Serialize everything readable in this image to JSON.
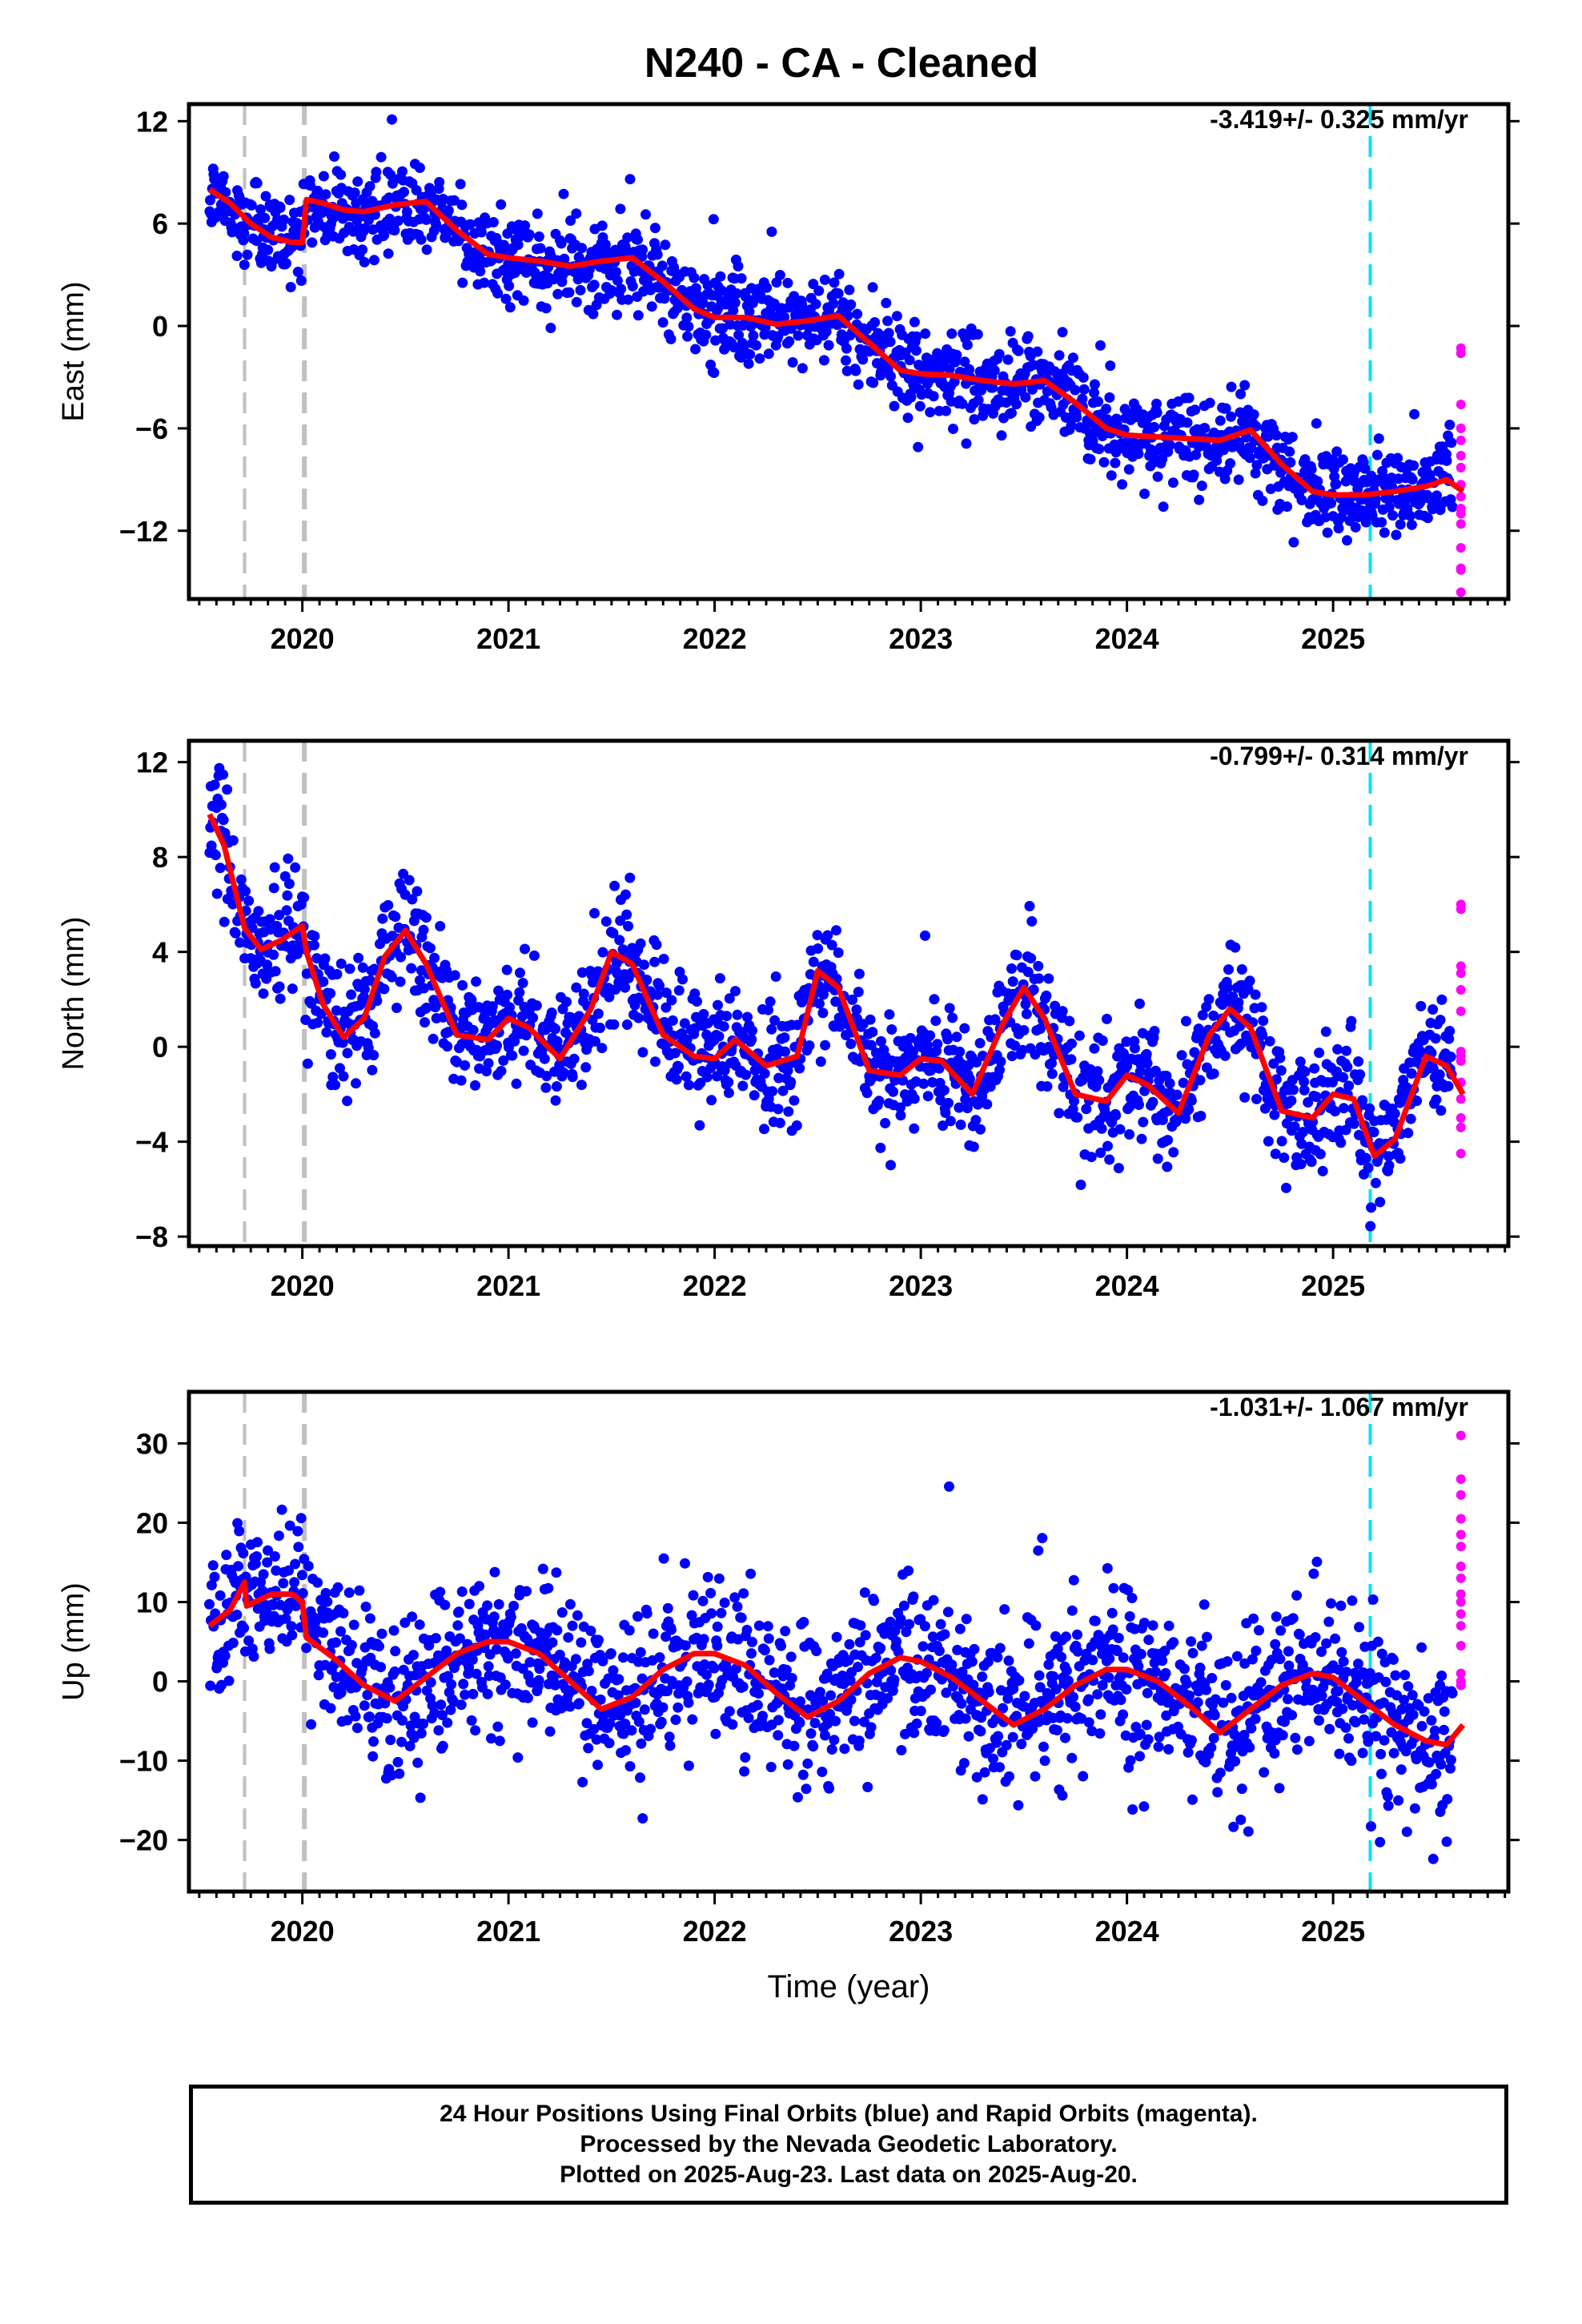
{
  "title": "N240  - CA - Cleaned",
  "footer": {
    "line1": "24 Hour Positions Using Final Orbits (blue) and Rapid Orbits (magenta).",
    "line2": "Processed by the Nevada Geodetic Laboratory.",
    "line3": "Plotted on 2025-Aug-23. Last data on 2025-Aug-20."
  },
  "colors": {
    "final_orbits": "#0000ff",
    "rapid_orbits": "#ff00ff",
    "model": "#ff0000",
    "event_gray": "#c0c0c0",
    "event_cyan": "#00e5ee"
  },
  "chart_data": [
    {
      "type": "scatter",
      "ylabel": "East (mm)",
      "xlabel": "",
      "rate": "-3.419+/- 0.325 mm/yr",
      "xlim": [
        2019.45,
        2025.85
      ],
      "ylim": [
        -16,
        13
      ],
      "yticks": [
        "12",
        "6",
        "0",
        "−6",
        "−12"
      ],
      "ytick_values": [
        12,
        6,
        0,
        -6,
        -12
      ],
      "xticks": [
        "2020",
        "2021",
        "2022",
        "2023",
        "2024",
        "2025"
      ],
      "xtick_values": [
        2020,
        2021,
        2022,
        2023,
        2024,
        2025
      ],
      "event_lines": [
        {
          "x": 2019.72,
          "color": "gray"
        },
        {
          "x": 2020.01,
          "color": "gray"
        },
        {
          "x": 2025.18,
          "color": "cyan"
        }
      ],
      "model_line": {
        "x": [
          2019.55,
          2019.65,
          2019.75,
          2019.85,
          2019.95,
          2020.0,
          2020.02,
          2020.1,
          2020.2,
          2020.3,
          2020.45,
          2020.6,
          2020.75,
          2020.9,
          2021.0,
          2021.15,
          2021.3,
          2021.45,
          2021.6,
          2021.75,
          2021.9,
          2022.0,
          2022.15,
          2022.3,
          2022.45,
          2022.6,
          2022.75,
          2022.9,
          2023.0,
          2023.15,
          2023.3,
          2023.45,
          2023.6,
          2023.75,
          2023.9,
          2024.0,
          2024.15,
          2024.3,
          2024.45,
          2024.6,
          2024.75,
          2024.9,
          2025.0,
          2025.15,
          2025.3,
          2025.45,
          2025.55,
          2025.63
        ],
        "y": [
          8.0,
          7.2,
          6.0,
          5.2,
          4.9,
          4.9,
          7.4,
          7.2,
          6.8,
          6.7,
          7.1,
          7.3,
          5.6,
          4.2,
          4.0,
          3.8,
          3.5,
          3.8,
          4.0,
          2.6,
          1.0,
          0.5,
          0.5,
          0.1,
          0.3,
          0.6,
          -1.0,
          -2.6,
          -2.8,
          -2.9,
          -3.2,
          -3.4,
          -3.2,
          -4.5,
          -6.0,
          -6.4,
          -6.5,
          -6.6,
          -6.7,
          -6.1,
          -8.1,
          -9.7,
          -9.9,
          -9.9,
          -9.7,
          -9.4,
          -9.0,
          -9.7
        ]
      },
      "scatter_spec": {
        "start": 2019.55,
        "end": 2025.58,
        "step": 0.0034,
        "noise": 1.35,
        "seed": 11
      },
      "rapid_points": {
        "x": 2025.62,
        "y": [
          -1.3,
          -1.6,
          -4.6,
          -6.0,
          -6.7,
          -7.6,
          -8.3,
          -9.3,
          -10.0,
          -10.7,
          -11.0,
          -11.6,
          -13.0,
          -14.2,
          -14.3,
          -15.6
        ]
      }
    },
    {
      "type": "scatter",
      "ylabel": "North (mm)",
      "xlabel": "",
      "rate": "-0.799+/- 0.314 mm/yr",
      "xlim": [
        2019.45,
        2025.85
      ],
      "ylim": [
        -8.4,
        12.9
      ],
      "yticks": [
        "12",
        "8",
        "4",
        "0",
        "−4",
        "−8"
      ],
      "ytick_values": [
        12,
        8,
        4,
        0,
        -4,
        -8
      ],
      "xticks": [
        "2020",
        "2021",
        "2022",
        "2023",
        "2024",
        "2025"
      ],
      "xtick_values": [
        2020,
        2021,
        2022,
        2023,
        2024,
        2025
      ],
      "event_lines": [
        {
          "x": 2019.72,
          "color": "gray"
        },
        {
          "x": 2020.01,
          "color": "gray"
        },
        {
          "x": 2025.18,
          "color": "cyan"
        }
      ],
      "model_line": {
        "x": [
          2019.55,
          2019.62,
          2019.72,
          2019.8,
          2019.9,
          2020.0,
          2020.02,
          2020.1,
          2020.2,
          2020.3,
          2020.4,
          2020.5,
          2020.6,
          2020.75,
          2020.9,
          2021.0,
          2021.1,
          2021.25,
          2021.4,
          2021.5,
          2021.6,
          2021.75,
          2021.9,
          2022.0,
          2022.1,
          2022.25,
          2022.4,
          2022.5,
          2022.6,
          2022.75,
          2022.9,
          2023.0,
          2023.1,
          2023.25,
          2023.4,
          2023.5,
          2023.6,
          2023.75,
          2023.9,
          2024.0,
          2024.1,
          2024.25,
          2024.4,
          2024.5,
          2024.6,
          2024.75,
          2024.9,
          2025.0,
          2025.1,
          2025.2,
          2025.3,
          2025.45,
          2025.55,
          2025.63
        ],
        "y": [
          9.8,
          8.5,
          5.0,
          4.1,
          4.5,
          5.1,
          4.0,
          1.8,
          0.4,
          1.2,
          3.8,
          4.9,
          3.5,
          0.5,
          0.3,
          1.2,
          0.8,
          -0.5,
          1.6,
          4.0,
          3.5,
          0.5,
          -0.4,
          -0.5,
          0.3,
          -0.8,
          -0.4,
          3.2,
          2.5,
          -1.0,
          -1.2,
          -0.5,
          -0.6,
          -2.0,
          1.0,
          2.5,
          1.2,
          -2.0,
          -2.3,
          -1.2,
          -1.6,
          -2.8,
          0.5,
          1.6,
          0.8,
          -2.7,
          -3.0,
          -2.0,
          -2.2,
          -4.6,
          -3.9,
          -0.4,
          -0.8,
          -2.0
        ]
      },
      "scatter_spec": {
        "start": 2019.55,
        "end": 2025.58,
        "step": 0.0034,
        "noise": 1.25,
        "seed": 23
      },
      "rapid_points": {
        "x": 2025.62,
        "y": [
          6.0,
          5.8,
          3.4,
          3.1,
          2.4,
          1.5,
          -0.2,
          -0.4,
          -0.6,
          -1.5,
          -2.2,
          -3.0,
          -3.4,
          -4.5
        ]
      }
    },
    {
      "type": "scatter",
      "ylabel": "Up (mm)",
      "xlabel": "Time (year)",
      "rate": "-1.031+/- 1.067 mm/yr",
      "xlim": [
        2019.45,
        2025.85
      ],
      "ylim": [
        -26.5,
        36.5
      ],
      "yticks": [
        "30",
        "20",
        "10",
        "0",
        "−10",
        "−20"
      ],
      "ytick_values": [
        30,
        20,
        10,
        0,
        -10,
        -20
      ],
      "xticks": [
        "2020",
        "2021",
        "2022",
        "2023",
        "2024",
        "2025"
      ],
      "xtick_values": [
        2020,
        2021,
        2022,
        2023,
        2024,
        2025
      ],
      "event_lines": [
        {
          "x": 2019.72,
          "color": "gray"
        },
        {
          "x": 2020.01,
          "color": "gray"
        },
        {
          "x": 2025.18,
          "color": "cyan"
        }
      ],
      "model_line": {
        "x": [
          2019.55,
          2019.65,
          2019.72,
          2019.73,
          2019.85,
          2019.95,
          2020.0,
          2020.02,
          2020.15,
          2020.3,
          2020.45,
          2020.6,
          2020.75,
          2020.9,
          2021.0,
          2021.15,
          2021.3,
          2021.45,
          2021.6,
          2021.75,
          2021.9,
          2022.0,
          2022.15,
          2022.3,
          2022.45,
          2022.6,
          2022.75,
          2022.9,
          2023.0,
          2023.15,
          2023.3,
          2023.45,
          2023.6,
          2023.75,
          2023.9,
          2024.0,
          2024.15,
          2024.3,
          2024.45,
          2024.6,
          2024.75,
          2024.9,
          2025.0,
          2025.15,
          2025.3,
          2025.45,
          2025.55,
          2025.63
        ],
        "y": [
          7.0,
          9.0,
          12.5,
          9.5,
          11.0,
          11.0,
          10.0,
          5.5,
          3.0,
          -0.5,
          -2.5,
          0.5,
          3.5,
          5.0,
          5.0,
          3.5,
          0.0,
          -3.5,
          -2.0,
          1.5,
          3.5,
          3.5,
          2.0,
          -1.5,
          -4.5,
          -2.5,
          1.0,
          3.0,
          2.5,
          0.5,
          -2.5,
          -5.5,
          -3.5,
          -0.5,
          1.5,
          1.5,
          0.0,
          -3.0,
          -6.5,
          -3.5,
          -0.5,
          1.0,
          0.5,
          -2.5,
          -5.5,
          -7.5,
          -8.0,
          -5.5
        ]
      },
      "scatter_spec": {
        "start": 2019.55,
        "end": 2025.58,
        "step": 0.0034,
        "noise": 5.0,
        "seed": 37
      },
      "rapid_points": {
        "x": 2025.62,
        "y": [
          31.0,
          25.5,
          23.5,
          20.5,
          18.5,
          17.0,
          14.5,
          13.0,
          11.0,
          10.0,
          8.5,
          7.0,
          4.5,
          1.0,
          0.0,
          -0.5
        ]
      }
    }
  ]
}
